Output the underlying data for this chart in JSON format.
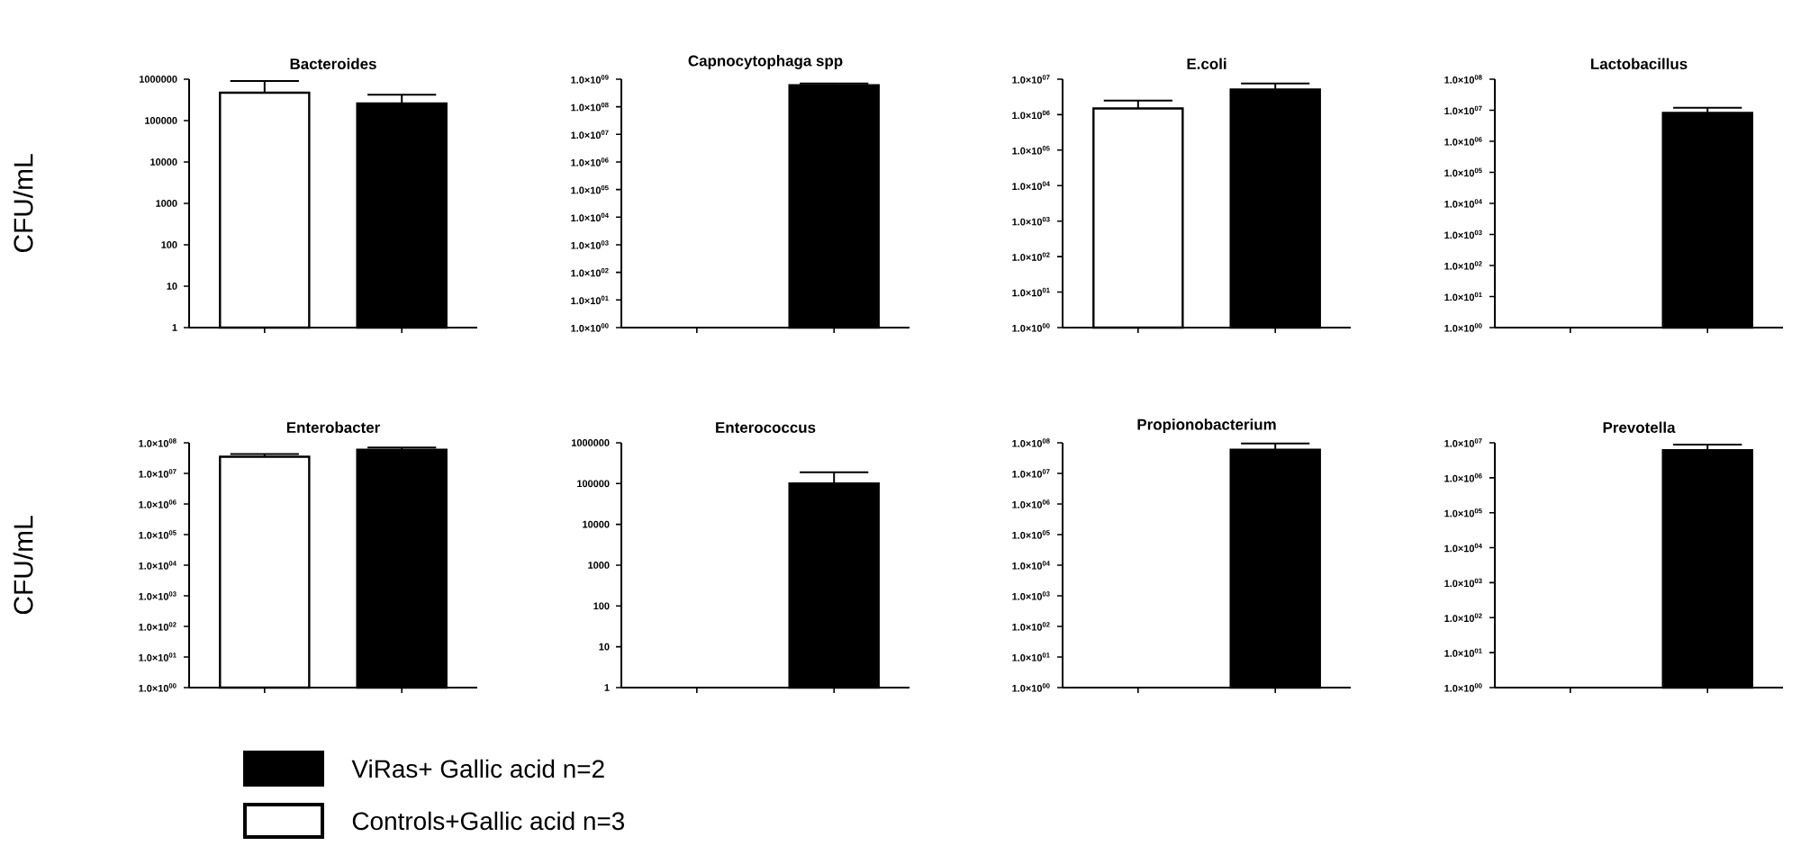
{
  "chart_data": [
    {
      "type": "bar",
      "title": "Bacteroides",
      "ylabel": "CFU/mL",
      "log": true,
      "legend": "bottom",
      "categories": [
        null,
        null
      ],
      "ylim": [
        1,
        1000000
      ],
      "yticks": [
        1,
        10,
        100,
        1000,
        10000,
        100000,
        1000000
      ],
      "series": [
        {
          "name": "Controls+Gallic acid n=3",
          "color": "#ffffff",
          "values": [
            470000,
            null
          ],
          "errors": [
            [
              470000,
              900000
            ],
            null
          ]
        },
        {
          "name": "ViRas+ Gallic acid n=2",
          "color": "#000000",
          "values": [
            null,
            260000
          ],
          "errors": [
            null,
            [
              260000,
              420000
            ]
          ]
        }
      ]
    },
    {
      "type": "bar",
      "title": "Capnocytophaga spp",
      "log": true,
      "categories": [
        null,
        null
      ],
      "ylim": [
        1,
        1000000000
      ],
      "yticks": [
        {
          "value": 1,
          "label": "1.0×10$^{00}$"
        },
        {
          "value": 10,
          "label": "1.0×10$^{01}$"
        },
        {
          "value": 100,
          "label": "1.0×10$^{02}$"
        },
        {
          "value": 1000,
          "label": "1.0×10$^{03}$"
        },
        {
          "value": 10000,
          "label": "1.0×10$^{04}$"
        },
        {
          "value": 100000,
          "label": "1.0×10$^{05}$"
        },
        {
          "value": 1000000,
          "label": "1.0×10$^{06}$"
        },
        {
          "value": 10000000,
          "label": "1.0×10$^{07}$"
        },
        {
          "value": 100000000,
          "label": "1.0×10$^{08}$"
        },
        {
          "value": 1000000000,
          "label": "1.0×10$^{09}$"
        }
      ],
      "series": [
        {
          "color": "#ffffff",
          "values": [
            null,
            null
          ],
          "errors": [
            null,
            null
          ]
        },
        {
          "color": "#000000",
          "values": [
            null,
            600000000
          ],
          "errors": [
            null,
            [
              600000000,
              700000000
            ]
          ]
        }
      ]
    },
    {
      "type": "bar",
      "title": "E.coli",
      "log": true,
      "categories": [
        null,
        null
      ],
      "ylim": [
        1,
        10000000
      ],
      "yticks": [
        {
          "value": 1,
          "label": "1.0×10$^{00}$"
        },
        {
          "value": 10,
          "label": "1.0×10$^{01}$"
        },
        {
          "value": 100,
          "label": "1.0×10$^{02}$"
        },
        {
          "value": 1000,
          "label": "1.0×10$^{03}$"
        },
        {
          "value": 10000,
          "label": "1.0×10$^{04}$"
        },
        {
          "value": 100000,
          "label": "1.0×10$^{05}$"
        },
        {
          "value": 1000000,
          "label": "1.0×10$^{06}$"
        },
        {
          "value": 10000000,
          "label": "1.0×10$^{07}$"
        }
      ],
      "series": [
        {
          "color": "#ffffff",
          "values": [
            1500000,
            null
          ],
          "errors": [
            [
              1500000,
              2500000
            ],
            null
          ]
        },
        {
          "color": "#000000",
          "values": [
            null,
            5100000
          ],
          "errors": [
            null,
            [
              5100000,
              7600000
            ]
          ]
        }
      ]
    },
    {
      "type": "bar",
      "title": "Lactobacillus",
      "log": true,
      "categories": [
        null,
        null
      ],
      "ylim": [
        1,
        100000000
      ],
      "yticks": [
        {
          "value": 1,
          "label": "1.0×10$^{00}$"
        },
        {
          "value": 10,
          "label": "1.0×10$^{01}$"
        },
        {
          "value": 100,
          "label": "1.0×10$^{02}$"
        },
        {
          "value": 1000,
          "label": "1.0×10$^{03}$"
        },
        {
          "value": 10000,
          "label": "1.0×10$^{04}$"
        },
        {
          "value": 100000,
          "label": "1.0×10$^{05}$"
        },
        {
          "value": 1000000,
          "label": "1.0×10$^{06}$"
        },
        {
          "value": 10000000,
          "label": "1.0×10$^{07}$"
        },
        {
          "value": 100000000,
          "label": "1.0×10$^{08}$"
        }
      ],
      "series": [
        {
          "color": "#ffffff",
          "values": [
            null,
            null
          ],
          "errors": [
            null,
            null
          ]
        },
        {
          "color": "#000000",
          "values": [
            null,
            8200000
          ],
          "errors": [
            null,
            [
              8200000,
              12000000
            ]
          ]
        }
      ]
    },
    {
      "type": "bar",
      "title": "Enterobacter",
      "ylabel": "CFU/mL",
      "log": true,
      "categories": [
        null,
        null
      ],
      "ylim": [
        1,
        100000000
      ],
      "yticks": [
        {
          "value": 1,
          "label": "1.0×10$^{00}$"
        },
        {
          "value": 10,
          "label": "1.0×10$^{01}$"
        },
        {
          "value": 100,
          "label": "1.0×10$^{02}$"
        },
        {
          "value": 1000,
          "label": "1.0×10$^{03}$"
        },
        {
          "value": 10000,
          "label": "1.0×10$^{04}$"
        },
        {
          "value": 100000,
          "label": "1.0×10$^{05}$"
        },
        {
          "value": 1000000,
          "label": "1.0×10$^{06}$"
        },
        {
          "value": 10000000,
          "label": "1.0×10$^{07}$"
        },
        {
          "value": 100000000,
          "label": "1.0×10$^{08}$"
        }
      ],
      "series": [
        {
          "color": "#ffffff",
          "values": [
            35000000,
            null
          ],
          "errors": [
            [
              35000000,
              43000000
            ],
            null
          ]
        },
        {
          "color": "#000000",
          "values": [
            null,
            59000000
          ],
          "errors": [
            null,
            [
              59000000,
              70000000
            ]
          ]
        }
      ]
    },
    {
      "type": "bar",
      "title": "Enterococcus",
      "log": true,
      "categories": [
        null,
        null
      ],
      "ylim": [
        1,
        1000000
      ],
      "yticks": [
        1,
        10,
        100,
        1000,
        10000,
        100000,
        1000000
      ],
      "series": [
        {
          "color": "#ffffff",
          "values": [
            null,
            null
          ],
          "errors": [
            null,
            null
          ]
        },
        {
          "color": "#000000",
          "values": [
            null,
            100000
          ],
          "errors": [
            null,
            [
              100000,
              190000
            ]
          ]
        }
      ]
    },
    {
      "type": "bar",
      "title": "Propionobacterium",
      "log": true,
      "categories": [
        null,
        null
      ],
      "ylim": [
        1,
        100000000
      ],
      "yticks": [
        {
          "value": 1,
          "label": "1.0×10$^{00}$"
        },
        {
          "value": 10,
          "label": "1.0×10$^{01}$"
        },
        {
          "value": 100,
          "label": "1.0×10$^{02}$"
        },
        {
          "value": 1000,
          "label": "1.0×10$^{03}$"
        },
        {
          "value": 10000,
          "label": "1.0×10$^{04}$"
        },
        {
          "value": 100000,
          "label": "1.0×10$^{05}$"
        },
        {
          "value": 1000000,
          "label": "1.0×10$^{06}$"
        },
        {
          "value": 10000000,
          "label": "1.0×10$^{07}$"
        },
        {
          "value": 100000000,
          "label": "1.0×10$^{08}$"
        }
      ],
      "series": [
        {
          "color": "#ffffff",
          "values": [
            null,
            null
          ],
          "errors": [
            null,
            null
          ]
        },
        {
          "color": "#000000",
          "values": [
            null,
            59000000
          ],
          "errors": [
            null,
            [
              59000000,
              95000000
            ]
          ]
        }
      ]
    },
    {
      "type": "bar",
      "title": "Prevotella",
      "log": true,
      "categories": [
        null,
        null
      ],
      "ylim": [
        1,
        10000000
      ],
      "yticks": [
        {
          "value": 1,
          "label": "1.0×10$^{00}$"
        },
        {
          "value": 10,
          "label": "1.0×10$^{01}$"
        },
        {
          "value": 100,
          "label": "1.0×10$^{02}$"
        },
        {
          "value": 1000,
          "label": "1.0×10$^{03}$"
        },
        {
          "value": 10000,
          "label": "1.0×10$^{04}$"
        },
        {
          "value": 100000,
          "label": "1.0×10$^{05}$"
        },
        {
          "value": 1000000,
          "label": "1.0×10$^{06}$"
        },
        {
          "value": 10000000,
          "label": "1.0×10$^{07}$"
        }
      ],
      "series": [
        {
          "color": "#ffffff",
          "values": [
            null,
            null
          ],
          "errors": [
            null,
            null
          ]
        },
        {
          "color": "#000000",
          "values": [
            null,
            6100000
          ],
          "errors": [
            null,
            [
              6100000,
              8900000
            ]
          ]
        }
      ]
    }
  ]
}
